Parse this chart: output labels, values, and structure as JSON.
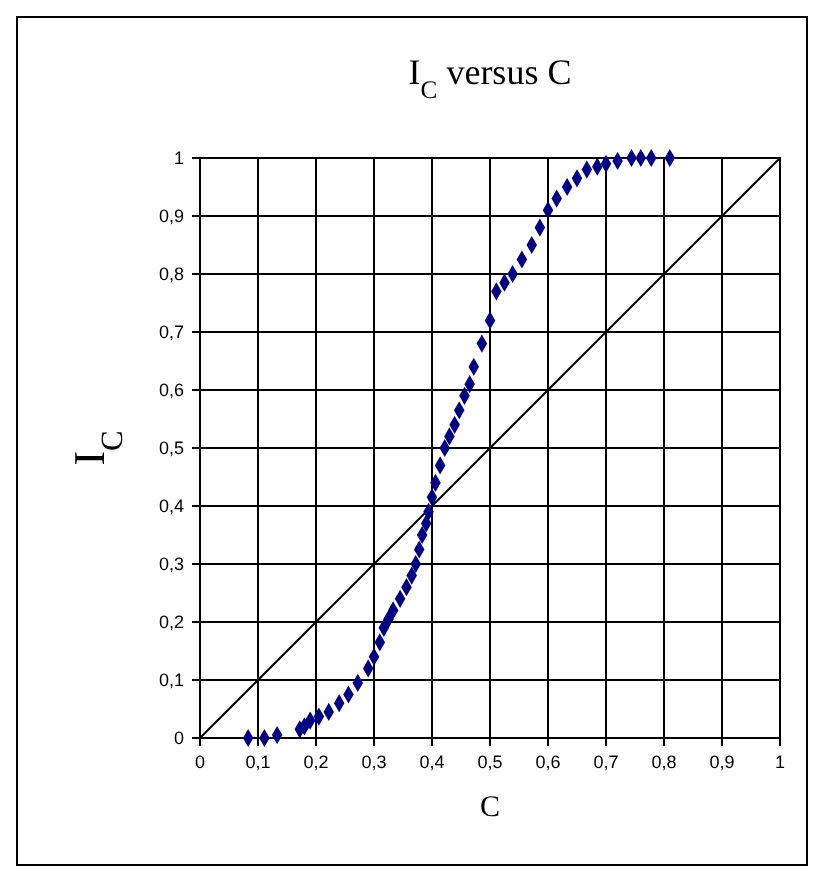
{
  "chart_data": {
    "type": "scatter",
    "title": "I$_{C}$ versus C",
    "xlabel": "C",
    "ylabel": "I$_{C}$",
    "xlim": [
      0,
      1
    ],
    "ylim": [
      0,
      1
    ],
    "xticks": [
      0,
      {
        "value": 0.1,
        "label": "0,1"
      },
      {
        "value": 0.2,
        "label": "0,2"
      },
      {
        "value": 0.3,
        "label": "0,3"
      },
      {
        "value": 0.4,
        "label": "0,4"
      },
      {
        "value": 0.5,
        "label": "0,5"
      },
      {
        "value": 0.6,
        "label": "0,6"
      },
      {
        "value": 0.7,
        "label": "0,7"
      },
      {
        "value": 0.8,
        "label": "0,8"
      },
      {
        "value": 0.9,
        "label": "0,9"
      },
      1
    ],
    "yticks": [
      0,
      {
        "value": 0.1,
        "label": "0,1"
      },
      {
        "value": 0.2,
        "label": "0,2"
      },
      {
        "value": 0.3,
        "label": "0,3"
      },
      {
        "value": 0.4,
        "label": "0,4"
      },
      {
        "value": 0.5,
        "label": "0,5"
      },
      {
        "value": 0.6,
        "label": "0,6"
      },
      {
        "value": 0.7,
        "label": "0,7"
      },
      {
        "value": 0.8,
        "label": "0,8"
      },
      {
        "value": 0.9,
        "label": "0,9"
      },
      1
    ],
    "grid": true,
    "series": [
      {
        "color": "#000080",
        "marker": "diamond",
        "x": [
          0.083,
          0.111,
          0.133,
          0.172,
          0.18,
          0.19,
          0.205,
          0.222,
          0.24,
          0.256,
          0.272,
          0.29,
          0.3,
          0.31,
          0.317,
          0.325,
          0.333,
          0.345,
          0.356,
          0.365,
          0.372,
          0.378,
          0.383,
          0.39,
          0.394,
          0.4,
          0.406,
          0.414,
          0.422,
          0.43,
          0.439,
          0.447,
          0.456,
          0.465,
          0.472,
          0.486,
          0.5,
          0.511,
          0.525,
          0.539,
          0.555,
          0.572,
          0.586,
          0.6,
          0.615,
          0.633,
          0.65,
          0.667,
          0.685,
          0.7,
          0.72,
          0.744,
          0.76,
          0.778,
          0.81
        ],
        "values": [
          0,
          0,
          0.005,
          0.015,
          0.02,
          0.03,
          0.037,
          0.045,
          0.06,
          0.075,
          0.095,
          0.12,
          0.14,
          0.165,
          0.19,
          0.205,
          0.22,
          0.24,
          0.26,
          0.28,
          0.3,
          0.325,
          0.35,
          0.37,
          0.39,
          0.415,
          0.44,
          0.47,
          0.5,
          0.52,
          0.54,
          0.565,
          0.59,
          0.61,
          0.64,
          0.68,
          0.72,
          0.77,
          0.785,
          0.8,
          0.825,
          0.85,
          0.88,
          0.91,
          0.93,
          0.95,
          0.965,
          0.98,
          0.985,
          0.99,
          0.995,
          1,
          1,
          1,
          1
        ]
      },
      {
        "type": "line",
        "color": "#000000",
        "marker": "none",
        "line_style": "solid",
        "x": [
          0,
          1
        ],
        "values": [
          0,
          1
        ]
      }
    ]
  }
}
